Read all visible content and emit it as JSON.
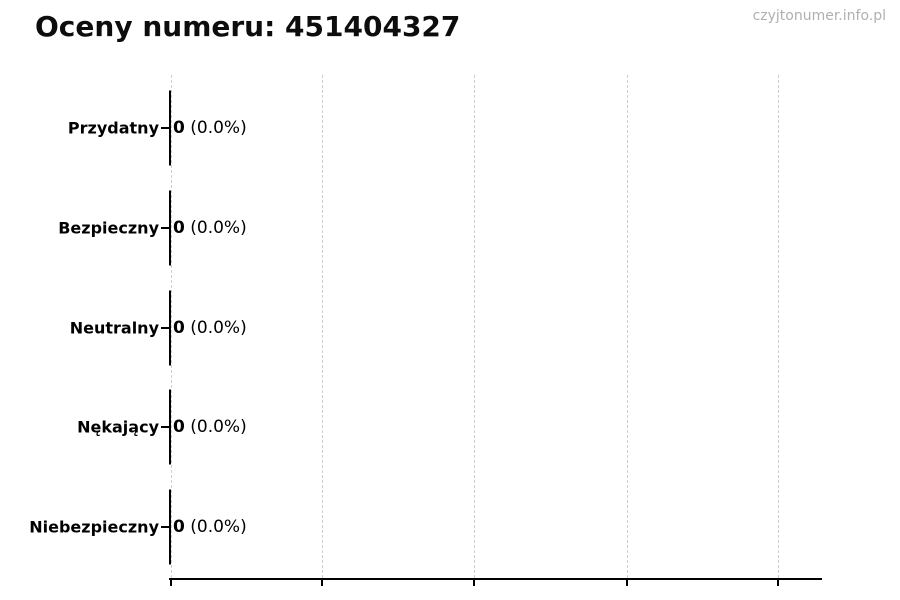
{
  "watermark": "czyjtonumer.info.pl",
  "chart_data": {
    "type": "bar",
    "orientation": "horizontal",
    "title": "Oceny numeru: 451404327",
    "categories": [
      "Przydatny",
      "Bezpieczny",
      "Neutralny",
      "Nękający",
      "Niebezpieczny"
    ],
    "values": [
      0,
      0,
      0,
      0,
      0
    ],
    "counts": [
      "0",
      "0",
      "0",
      "0",
      "0"
    ],
    "percent_labels": [
      "(0.0%)",
      "(0.0%)",
      "(0.0%)",
      "(0.0%)",
      "(0.0%)"
    ],
    "xlim": [
      0,
      1.1
    ],
    "xticks": [
      0,
      0.25,
      0.5,
      0.75,
      1.0
    ],
    "xtick_labels_visible": false,
    "grid": "vertical-dashed",
    "legend": "none",
    "colors": {
      "bar_edge": "#000000",
      "grid": "#cdcdcd",
      "axis": "#000000",
      "text": "#000000",
      "watermark": "#b0b0b0",
      "background": "#ffffff"
    }
  }
}
